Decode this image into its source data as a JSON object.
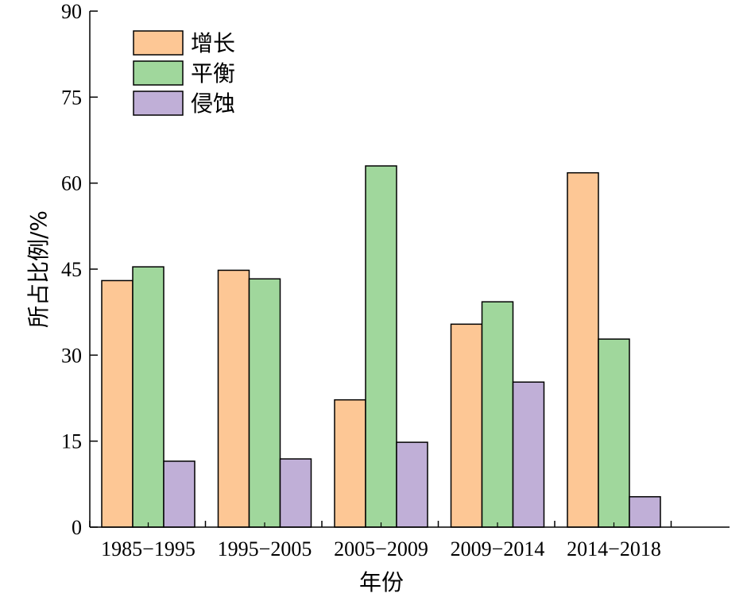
{
  "chart_data": {
    "type": "bar",
    "categories": [
      "1985−1995",
      "1995−2005",
      "2005−2009",
      "2009−2014",
      "2014−2018"
    ],
    "series": [
      {
        "name": "增长",
        "color": "#FDC795",
        "values": [
          43,
          44.8,
          22.2,
          35.4,
          61.8
        ]
      },
      {
        "name": "平衡",
        "color": "#A0D79C",
        "values": [
          45.4,
          43.3,
          63,
          39.3,
          32.8
        ]
      },
      {
        "name": "侵蚀",
        "color": "#C0AFD7",
        "values": [
          11.5,
          11.9,
          14.8,
          25.3,
          5.3
        ]
      }
    ],
    "xlabel": "年份",
    "ylabel": "所占比例/%",
    "ylim": [
      0,
      90
    ],
    "yticks": [
      0,
      15,
      30,
      45,
      60,
      75,
      90
    ],
    "legend_position": "top-left",
    "grid": false
  }
}
